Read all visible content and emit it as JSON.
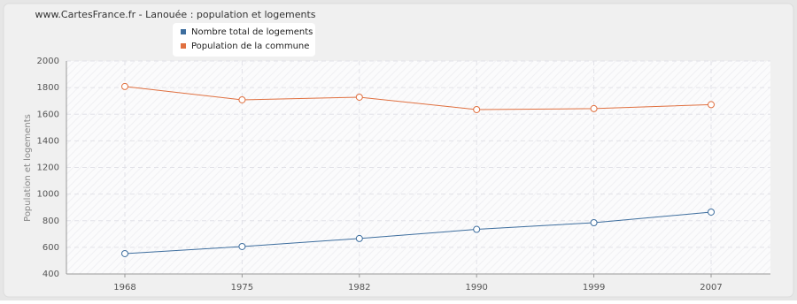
{
  "chart_data": {
    "type": "line",
    "title": "www.CartesFrance.fr - Lanouée : population et logements",
    "y_label": "Population et logements",
    "categories": [
      "1968",
      "1975",
      "1982",
      "1990",
      "1999",
      "2007"
    ],
    "series": [
      {
        "name": "Nombre total de logements",
        "color": "#3e6e9e",
        "values": [
          553,
          606,
          666,
          735,
          785,
          865
        ]
      },
      {
        "name": "Population de la commune",
        "color": "#e07040",
        "values": [
          1808,
          1708,
          1728,
          1635,
          1642,
          1672
        ]
      }
    ],
    "ylim": [
      400,
      2000
    ],
    "yticks": [
      400,
      600,
      800,
      1000,
      1200,
      1400,
      1600,
      1800,
      2000
    ],
    "grid": true
  }
}
